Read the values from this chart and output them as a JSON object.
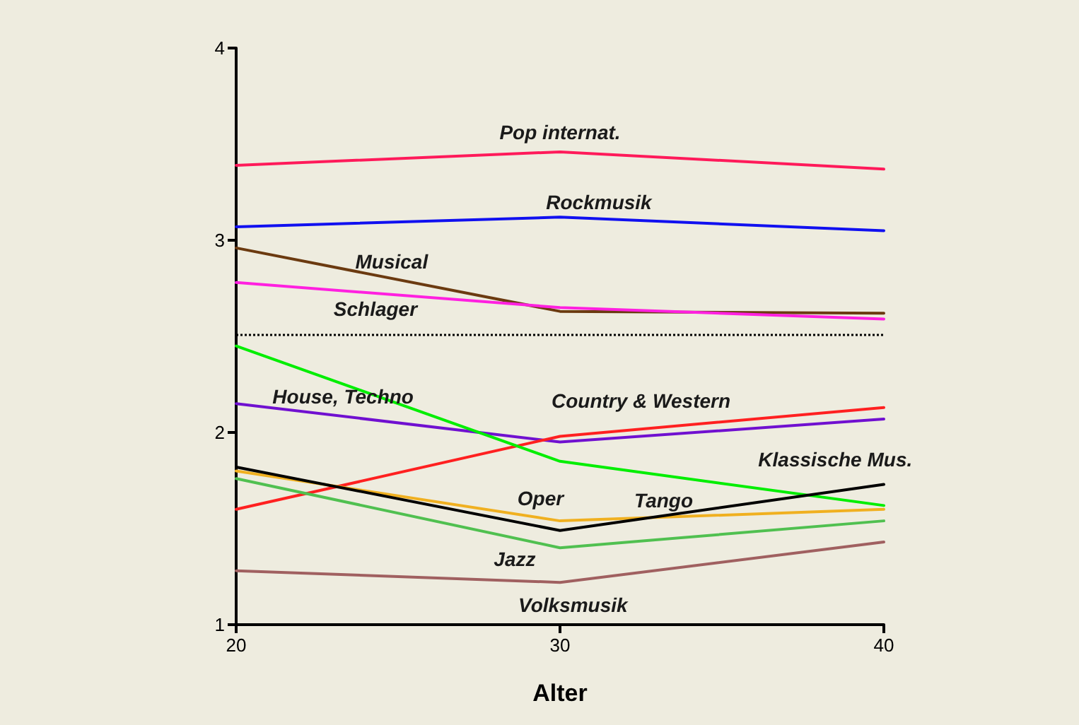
{
  "chart_data": {
    "type": "line",
    "xlabel": "Alter",
    "x": [
      20,
      30,
      40
    ],
    "xlim": [
      20,
      40
    ],
    "xticks": [
      20,
      30,
      40
    ],
    "ylim": [
      1,
      4
    ],
    "yticks": [
      1,
      2,
      3,
      4
    ],
    "grid": false,
    "legend": false,
    "marker": "none",
    "line_style": "solid",
    "ref_lines": [
      {
        "axis": "y",
        "value": 2.51,
        "color": "#000000",
        "line_style": "dotted"
      }
    ],
    "series": [
      {
        "name": "Pop internat.",
        "color": "#ff1a5a",
        "values": [
          3.39,
          3.46,
          3.37
        ]
      },
      {
        "name": "Rockmusik",
        "color": "#1010f0",
        "values": [
          3.07,
          3.12,
          3.05
        ]
      },
      {
        "name": "Musical",
        "color": "#6b3a10",
        "values": [
          2.96,
          2.63,
          2.62
        ]
      },
      {
        "name": "Schlager",
        "color": "#ff20e0",
        "values": [
          2.78,
          2.65,
          2.59
        ]
      },
      {
        "name": "House, Techno",
        "color": "#7010d0",
        "values": [
          2.15,
          1.95,
          2.07
        ]
      },
      {
        "name": "Country & Western",
        "color": "#ff2020",
        "values": [
          1.6,
          1.98,
          2.13
        ]
      },
      {
        "name": "Klassische Mus.",
        "color": "#00ee00",
        "values": [
          2.45,
          1.85,
          1.62
        ]
      },
      {
        "name": "Oper",
        "color": "#f0b020",
        "values": [
          1.8,
          1.54,
          1.6
        ]
      },
      {
        "name": "Tango",
        "color": "#000000",
        "values": [
          1.82,
          1.49,
          1.73
        ]
      },
      {
        "name": "Jazz",
        "color": "#50c050",
        "values": [
          1.76,
          1.4,
          1.54
        ]
      },
      {
        "name": "Volksmusik",
        "color": "#a06060",
        "values": [
          1.28,
          1.22,
          1.43
        ]
      }
    ]
  }
}
